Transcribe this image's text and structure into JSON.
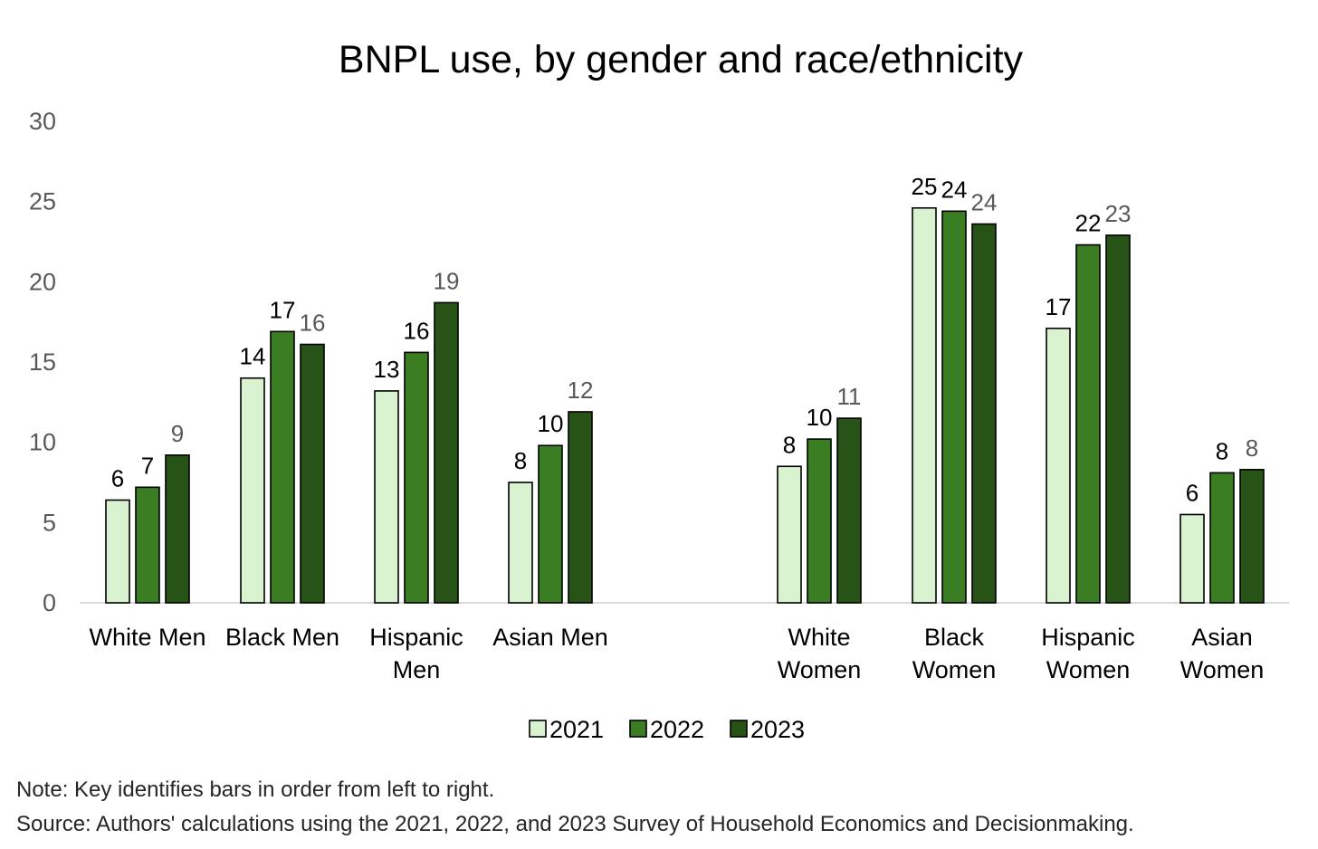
{
  "chart_data": {
    "type": "bar",
    "title": "BNPL use, by gender and race/ethnicity",
    "xlabel": "",
    "ylabel": "",
    "ylim": [
      0,
      30
    ],
    "yticks": [
      "0",
      "5",
      "10",
      "15",
      "20",
      "25",
      "30"
    ],
    "grid": false,
    "legend_position": "bottom",
    "categories": [
      [
        "White Men"
      ],
      [
        "Black Men"
      ],
      [
        "Hispanic",
        "Men"
      ],
      [
        "Asian Men"
      ],
      [
        "White",
        "Women"
      ],
      [
        "Black",
        "Women"
      ],
      [
        "Hispanic",
        "Women"
      ],
      [
        "Asian",
        "Women"
      ]
    ],
    "series": [
      {
        "name": "2021",
        "color": "#d9f2d0",
        "values": [
          6.4,
          14.0,
          13.2,
          7.5,
          8.5,
          24.6,
          17.1,
          5.5
        ],
        "labels": [
          "6",
          "14",
          "13",
          "8",
          "8",
          "25",
          "17",
          "6"
        ]
      },
      {
        "name": "2022",
        "color": "#3a7d22",
        "values": [
          7.2,
          16.9,
          15.6,
          9.8,
          10.2,
          24.4,
          22.3,
          8.1
        ],
        "labels": [
          "7",
          "17",
          "16",
          "10",
          "10",
          "24",
          "22",
          "8"
        ]
      },
      {
        "name": "2023",
        "color": "#275317",
        "values": [
          9.2,
          16.1,
          18.7,
          11.9,
          11.5,
          23.6,
          22.9,
          8.3
        ],
        "labels": [
          "9",
          "16",
          "19",
          "12",
          "11",
          "24",
          "23",
          "8"
        ]
      }
    ]
  },
  "notes": {
    "note": "Note: Key identifies bars in order from left to right.",
    "source": "Source: Authors' calculations using the 2021, 2022, and 2023 Survey of Household Economics and Decisionmaking."
  }
}
